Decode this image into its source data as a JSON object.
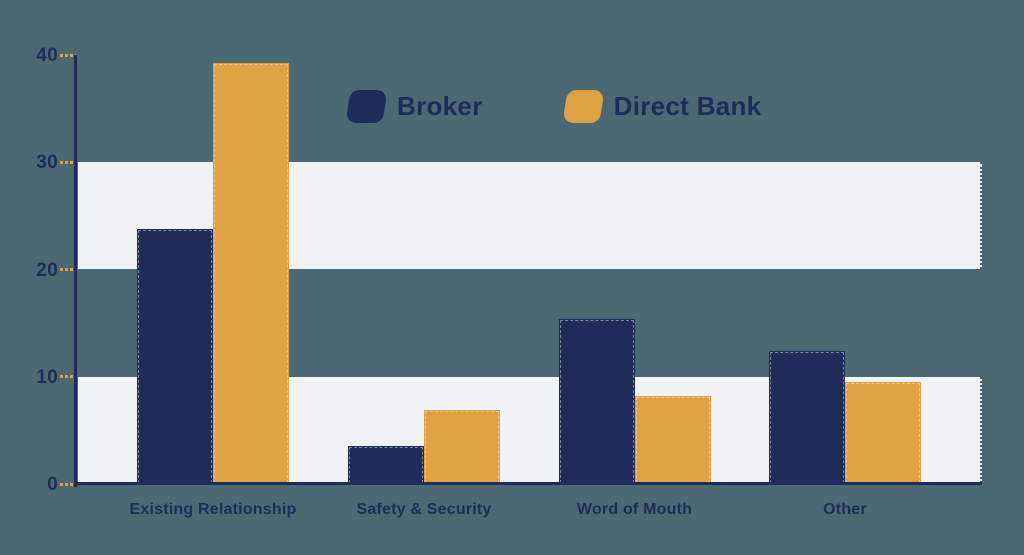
{
  "chart_data": {
    "type": "bar",
    "title": "",
    "xlabel": "",
    "ylabel": "",
    "categories": [
      "Existing Relationship",
      "Safety & Security",
      "Word of Mouth",
      "Other"
    ],
    "series": [
      {
        "name": "Broker",
        "color": "#1F2B59",
        "values": [
          23.8,
          3.5,
          15.4,
          12.4
        ]
      },
      {
        "name": "Direct Bank",
        "color": "#E0A144",
        "values": [
          39.3,
          6.9,
          8.2,
          9.5
        ]
      }
    ],
    "ylim": [
      0,
      40
    ],
    "ytick_labels": [
      "40",
      "30",
      "20",
      "10",
      "0"
    ],
    "ytick_values": [
      40,
      30,
      20,
      10,
      0
    ],
    "legend_position": "top-center",
    "grid": "striped horizontal bands covering 0-10 and 20-30",
    "colors": {
      "background": "#4C6973",
      "band": "#F1F2F4",
      "axis": "#1F2B59",
      "tick_dash": "#E0A144",
      "text": "#1F2B59",
      "broker_bar": "#1F2B59",
      "direct_bank_bar": "#E0A144"
    }
  }
}
